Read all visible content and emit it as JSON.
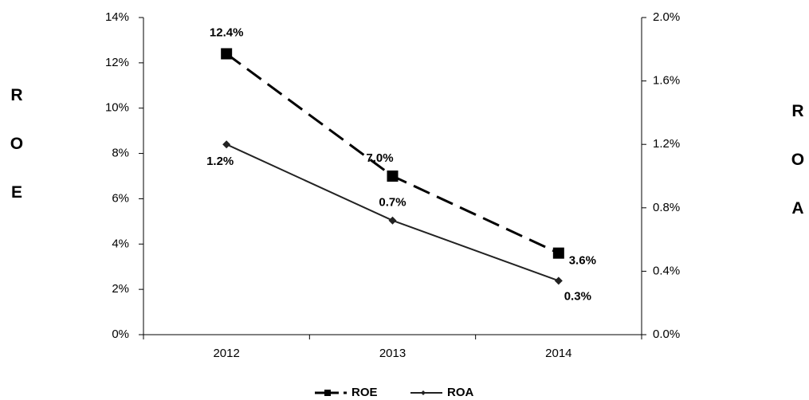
{
  "chart_data": {
    "type": "line",
    "categories": [
      "2012",
      "2013",
      "2014"
    ],
    "ylabel": "ROE",
    "y2label": "ROA",
    "ylim": [
      0,
      14
    ],
    "yticks": [
      {
        "value": 0,
        "label": "0%"
      },
      {
        "value": 2,
        "label": "2%"
      },
      {
        "value": 4,
        "label": "4%"
      },
      {
        "value": 6,
        "label": "6%"
      },
      {
        "value": 8,
        "label": "8%"
      },
      {
        "value": 10,
        "label": "10%"
      },
      {
        "value": 12,
        "label": "12%"
      },
      {
        "value": 14,
        "label": "14%"
      }
    ],
    "y2lim": [
      0,
      2.0
    ],
    "y2ticks": [
      {
        "value": 0,
        "label": "0.0%"
      },
      {
        "value": 0.4,
        "label": "0.4%"
      },
      {
        "value": 0.8,
        "label": "0.8%"
      },
      {
        "value": 1.2,
        "label": "1.2%"
      },
      {
        "value": 1.6,
        "label": "1.6%"
      },
      {
        "value": 2.0,
        "label": "2.0%"
      }
    ],
    "series": [
      {
        "name": "ROE",
        "color": "#000000",
        "line_style": "dashed",
        "marker": "square",
        "values": [
          12.4,
          7.0,
          3.6
        ],
        "value_labels": [
          "12.4%",
          "7.0%",
          "3.6%"
        ]
      },
      {
        "name": "ROA",
        "color": "#222222",
        "line_style": "solid",
        "marker": "diamond",
        "axis": "y2",
        "values": [
          1.2,
          0.72,
          0.34
        ],
        "value_labels": [
          "1.2%",
          "0.7%",
          "0.3%"
        ]
      }
    ],
    "legend": "bottom"
  }
}
